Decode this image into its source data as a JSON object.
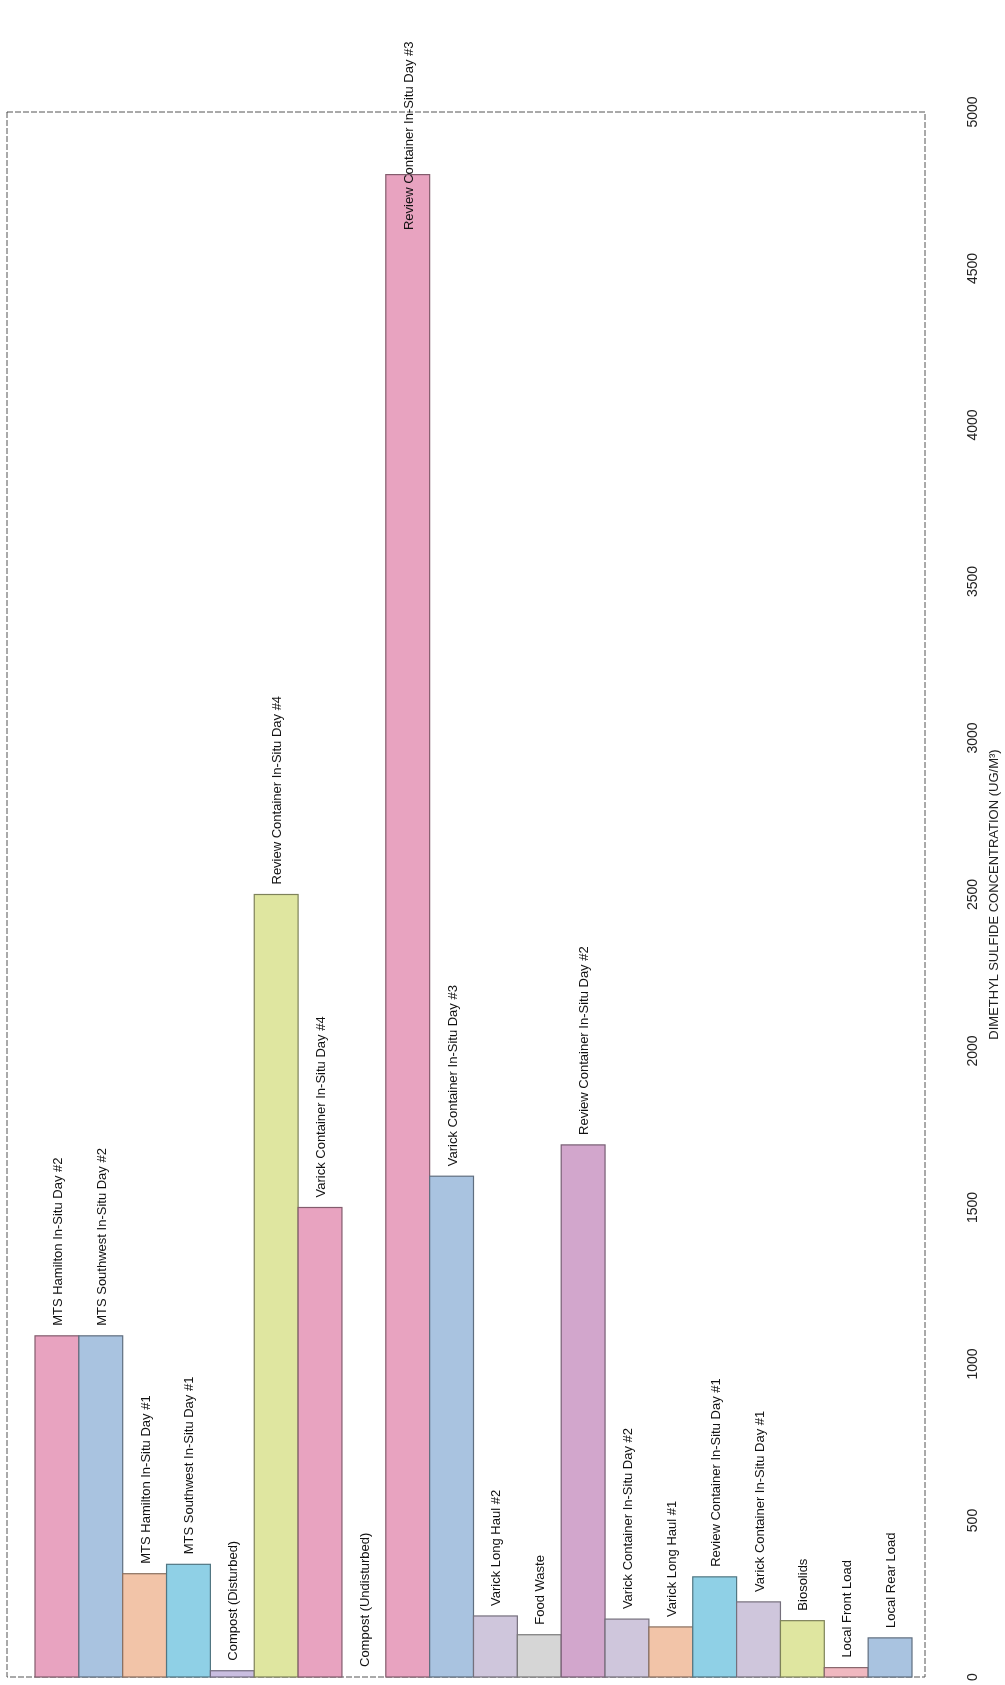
{
  "chart_data": {
    "type": "bar",
    "ylabel": "DIMETHYL SULFIDE CONCENTRATION (UG/M³)",
    "categories": [
      "MTS Hamilton In-Situ Day #2",
      "MTS Southwest In-Situ Day #2",
      "MTS Hamilton In-Situ Day #1",
      "MTS Southwest In-Situ Day #1",
      "Compost (Disturbed)",
      "Review Container In-Situ Day #4",
      "Varick Container In-Situ Day #4",
      "Compost (Undisturbed)",
      "Review Container In-Situ Day #3",
      "Varick Container In-Situ Day #3",
      "Varick Long Haul #2",
      "Food Waste",
      "Review Container In-Situ Day #2",
      "Varick Container In-Situ Day #2",
      "Varick Long Haul #1",
      "Review Container In-Situ Day #1",
      "Varick Container In-Situ Day #1",
      "Biosolids",
      "Local Front Load",
      "Local Rear Load"
    ],
    "values": [
      1090,
      1090,
      330,
      360,
      20,
      2500,
      1500,
      0,
      4800,
      1600,
      195,
      135,
      1700,
      185,
      160,
      320,
      240,
      180,
      30,
      125
    ],
    "colors": [
      "#e8a3c0",
      "#a9c3e0",
      "#f2c4a8",
      "#8fd0e6",
      "#c9bde0",
      "#dfe6a0",
      "#e8a3c0",
      "#e8a3c0",
      "#e8a3c0",
      "#a9c3e0",
      "#cfc6dc",
      "#d6d6d6",
      "#d2a6cc",
      "#cfc6dc",
      "#f2c4a8",
      "#8fd0e6",
      "#cfc6dc",
      "#dfe6a0",
      "#f0b8c0",
      "#a9c3e0"
    ],
    "ylim": [
      0,
      5000
    ],
    "yticks": [
      0,
      500,
      1000,
      1500,
      2000,
      2500,
      3000,
      3500,
      4000,
      4500,
      5000
    ],
    "grid": false
  }
}
